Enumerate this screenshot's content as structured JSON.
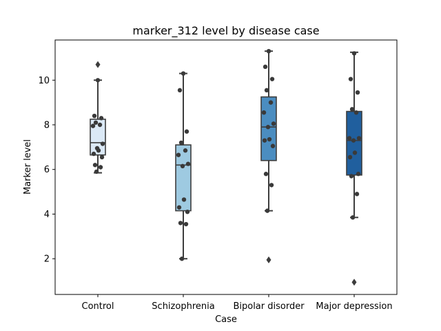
{
  "chart_data": {
    "type": "box",
    "title": "marker_312 level by disease case",
    "xlabel": "Case",
    "ylabel": "Marker level",
    "ylim": [
      0.4,
      11.8
    ],
    "yticks": [
      2,
      4,
      6,
      8,
      10
    ],
    "grid": false,
    "categories": [
      "Control",
      "Schizophrenia",
      "Bipolar disorder",
      "Major depression"
    ],
    "colors": [
      "#dbe9f6",
      "#9ecae1",
      "#4b8dc0",
      "#205f9e"
    ],
    "boxes": [
      {
        "q1": 6.65,
        "median": 7.2,
        "q3": 8.25,
        "whisker_low": 5.85,
        "whisker_high": 10.0,
        "outliers": [
          10.7
        ]
      },
      {
        "q1": 4.15,
        "median": 6.2,
        "q3": 7.1,
        "whisker_low": 2.0,
        "whisker_high": 10.3,
        "outliers": []
      },
      {
        "q1": 6.4,
        "median": 7.9,
        "q3": 9.25,
        "whisker_low": 4.15,
        "whisker_high": 11.3,
        "outliers": [
          1.95
        ]
      },
      {
        "q1": 5.75,
        "median": 7.3,
        "q3": 8.6,
        "whisker_low": 3.85,
        "whisker_high": 11.25,
        "outliers": [
          0.95
        ]
      }
    ],
    "points": [
      [
        10.0,
        8.4,
        8.3,
        8.1,
        8.0,
        7.95,
        7.15,
        6.95,
        6.85,
        6.7,
        6.55,
        6.2,
        6.1,
        5.9
      ],
      [
        10.3,
        9.55,
        7.7,
        7.2,
        6.85,
        6.65,
        6.25,
        6.15,
        4.65,
        4.3,
        4.1,
        3.6,
        3.55,
        2.0
      ],
      [
        11.3,
        10.6,
        10.05,
        9.55,
        9.0,
        8.55,
        8.05,
        7.9,
        7.35,
        7.3,
        7.05,
        5.8,
        5.3,
        4.15
      ],
      [
        11.2,
        10.05,
        9.45,
        8.7,
        8.55,
        7.4,
        7.4,
        7.3,
        6.75,
        6.55,
        5.8,
        5.7,
        4.9,
        3.85
      ]
    ]
  }
}
